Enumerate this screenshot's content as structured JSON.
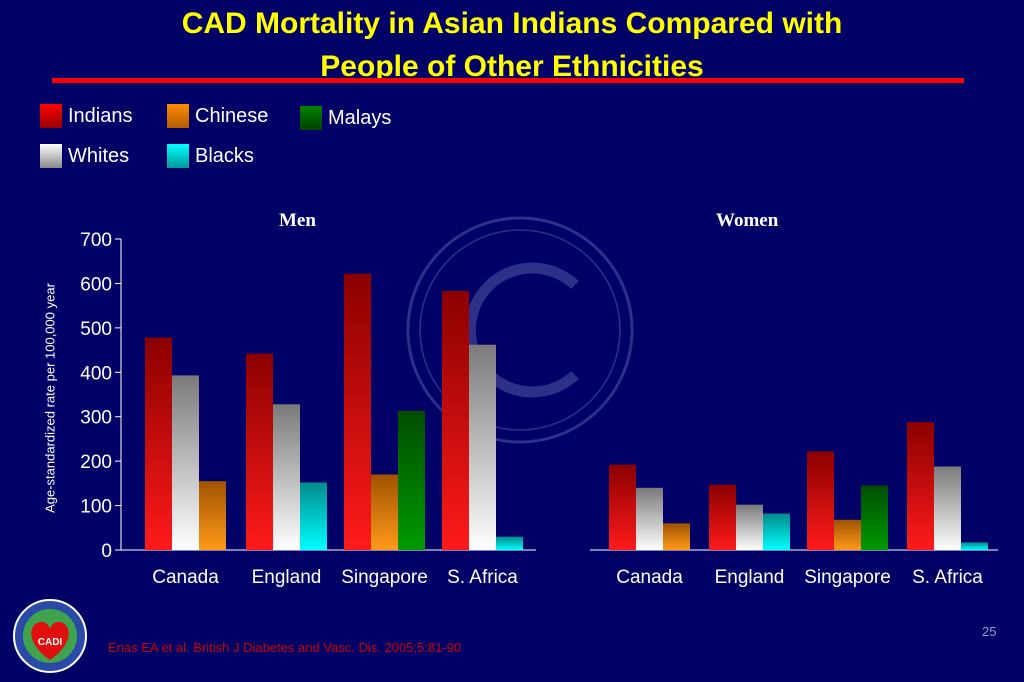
{
  "slide": {
    "title_line1": "CAD Mortality in Asian Indians Compared with",
    "title_line2": "People of Other Ethnicities",
    "citation": "Enas EA et al. British J Diabetes and Vasc. Dis. 2005;5:81-90",
    "page_number": "25",
    "logo_text": "CADI"
  },
  "legend": [
    {
      "name": "Indians",
      "color": "#ff0000"
    },
    {
      "name": "Chinese",
      "color": "#ff8c00"
    },
    {
      "name": "Malays",
      "color": "#008000"
    },
    {
      "name": "Whites",
      "color": "#ffffff"
    },
    {
      "name": "Blacks",
      "color": "#00e5e5"
    }
  ],
  "chart_data": [
    {
      "type": "bar",
      "title": "Men",
      "ylabel": "Age-standardized rate per 100,000 year",
      "ylim": [
        0,
        700
      ],
      "yticks": [
        0,
        100,
        200,
        300,
        400,
        500,
        600,
        700
      ],
      "categories": [
        "Canada",
        "England",
        "Singapore",
        "S. Africa"
      ],
      "series": [
        {
          "name": "Indians",
          "values": [
            478,
            442,
            622,
            583
          ]
        },
        {
          "name": "Whites",
          "values": [
            393,
            328,
            null,
            462
          ]
        },
        {
          "name": "Chinese",
          "values": [
            155,
            null,
            170,
            null
          ]
        },
        {
          "name": "Malays",
          "values": [
            null,
            null,
            313,
            null
          ]
        },
        {
          "name": "Blacks",
          "values": [
            null,
            152,
            null,
            30
          ]
        }
      ]
    },
    {
      "type": "bar",
      "title": "Women",
      "categories": [
        "Canada",
        "England",
        "Singapore",
        "S. Africa"
      ],
      "series": [
        {
          "name": "Indians",
          "values": [
            192,
            147,
            222,
            288
          ]
        },
        {
          "name": "Whites",
          "values": [
            140,
            102,
            null,
            188
          ]
        },
        {
          "name": "Chinese",
          "values": [
            60,
            null,
            68,
            null
          ]
        },
        {
          "name": "Malays",
          "values": [
            null,
            null,
            145,
            null
          ]
        },
        {
          "name": "Blacks",
          "values": [
            null,
            82,
            null,
            17
          ]
        }
      ]
    }
  ]
}
